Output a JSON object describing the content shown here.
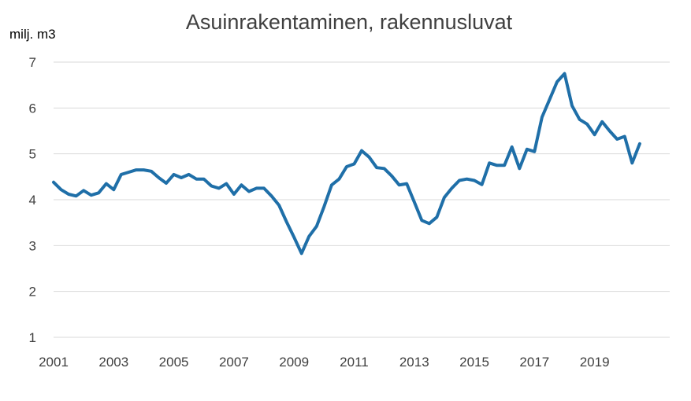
{
  "chart_data": {
    "type": "line",
    "title": "Asuinrakentaminen, rakennusluvat",
    "ylabel": "milj. m3",
    "xlabel": "",
    "ylim": [
      1,
      7
    ],
    "xlim": [
      2001,
      2021.5
    ],
    "y_ticks": [
      "1",
      "2",
      "3",
      "4",
      "5",
      "6",
      "7"
    ],
    "x_ticks": [
      "2001",
      "2003",
      "2005",
      "2007",
      "2009",
      "2011",
      "2013",
      "2015",
      "2017",
      "2019"
    ],
    "grid": true,
    "line_color": "#1f6fa8",
    "series": [
      {
        "x": [
          2001.0,
          2001.25,
          2001.5,
          2001.75,
          2002.0,
          2002.25,
          2002.5,
          2002.75,
          2003.0,
          2003.25,
          2003.5,
          2003.75,
          2004.0,
          2004.25,
          2004.5,
          2004.75,
          2005.0,
          2005.25,
          2005.5,
          2005.75,
          2006.0,
          2006.25,
          2006.5,
          2006.75,
          2007.0,
          2007.25,
          2007.5,
          2007.75,
          2008.0,
          2008.25,
          2008.5,
          2008.75,
          2009.0,
          2009.25,
          2009.5,
          2009.75,
          2010.0,
          2010.25,
          2010.5,
          2010.75,
          2011.0,
          2011.25,
          2011.5,
          2011.75,
          2012.0,
          2012.25,
          2012.5,
          2012.75,
          2013.0,
          2013.25,
          2013.5,
          2013.75,
          2014.0,
          2014.25,
          2014.5,
          2014.75,
          2015.0,
          2015.25,
          2015.5,
          2015.75,
          2016.0,
          2016.25,
          2016.5,
          2016.75,
          2017.0,
          2017.25,
          2017.5,
          2017.75,
          2018.0,
          2018.25,
          2018.5,
          2018.75,
          2019.0,
          2019.25,
          2019.5,
          2019.75,
          2020.0,
          2020.25,
          2020.5
        ],
        "values": [
          4.38,
          4.22,
          4.12,
          4.08,
          4.2,
          4.1,
          4.15,
          4.35,
          4.22,
          4.55,
          4.6,
          4.65,
          4.65,
          4.62,
          4.48,
          4.36,
          4.55,
          4.48,
          4.55,
          4.45,
          4.45,
          4.3,
          4.25,
          4.35,
          4.12,
          4.32,
          4.18,
          4.25,
          4.25,
          4.08,
          3.88,
          3.52,
          3.18,
          2.83,
          3.2,
          3.42,
          3.85,
          4.32,
          4.45,
          4.72,
          4.78,
          5.07,
          4.93,
          4.7,
          4.68,
          4.52,
          4.32,
          4.35,
          3.95,
          3.55,
          3.48,
          3.62,
          4.05,
          4.25,
          4.42,
          4.45,
          4.42,
          4.33,
          4.8,
          4.75,
          4.75,
          5.15,
          4.68,
          5.1,
          5.05,
          5.8,
          6.18,
          6.57,
          6.75,
          6.05,
          5.75,
          5.65,
          5.42,
          5.7,
          5.5,
          5.32,
          5.38,
          4.8,
          5.22
        ]
      }
    ]
  }
}
